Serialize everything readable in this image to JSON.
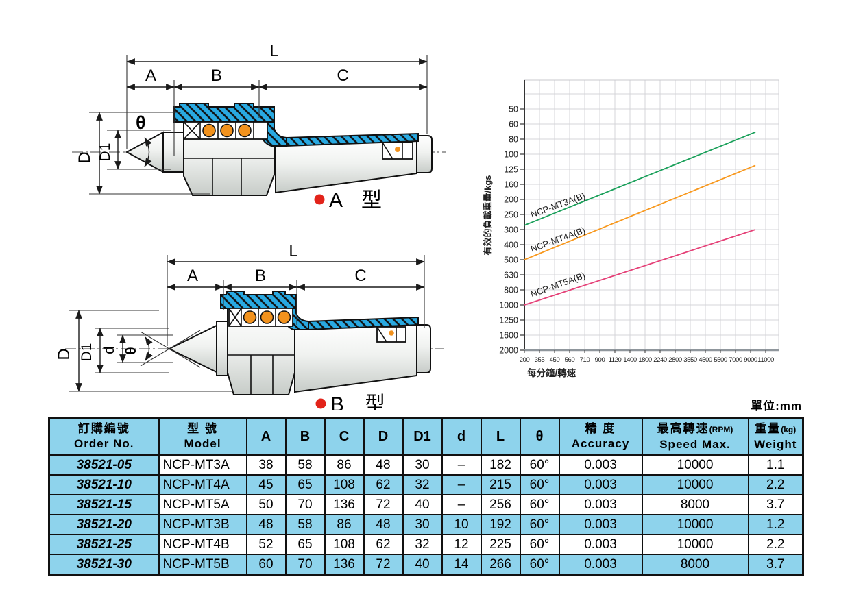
{
  "drawing_a": {
    "label_letter": "A",
    "label_suffix": "型",
    "dims": {
      "L": "L",
      "A": "A",
      "B": "B",
      "C": "C",
      "D": "D",
      "D1": "D1",
      "theta": "θ"
    }
  },
  "drawing_b": {
    "label_letter": "B",
    "label_suffix": "型",
    "dims": {
      "L": "L",
      "A": "A",
      "B": "B",
      "C": "C",
      "D": "D",
      "D1": "D1",
      "d": "d",
      "theta": "θ"
    }
  },
  "chart_data": {
    "type": "line",
    "title": "",
    "xlabel": "每分鐘/轉速",
    "ylabel": "有效的負載重量/kgs",
    "x_scale": "log (R20 preferred-number ticks)",
    "y_scale": "log inverted (values increase downward)",
    "x_ticks": [
      200,
      355,
      450,
      560,
      710,
      900,
      1120,
      1400,
      1800,
      2240,
      2800,
      3550,
      4500,
      5500,
      7000,
      9000,
      11000
    ],
    "y_ticks": [
      50,
      60,
      80,
      100,
      125,
      160,
      200,
      250,
      300,
      400,
      500,
      630,
      800,
      1000,
      1250,
      1600,
      2000
    ],
    "grid": true,
    "legend_position": "inline rotated labels above each line",
    "frame_color": "#f6ba1e",
    "series": [
      {
        "name": "NCP-MT3A(B)",
        "color": "#1aa05a",
        "points": [
          [
            200,
            285
          ],
          [
            9600,
            70
          ]
        ]
      },
      {
        "name": "NCP-MT4A(B)",
        "color": "#f8981d",
        "points": [
          [
            200,
            500
          ],
          [
            9600,
            118
          ]
        ]
      },
      {
        "name": "NCP-MT5A(B)",
        "color": "#e54077",
        "points": [
          [
            200,
            1000
          ],
          [
            9600,
            300
          ]
        ]
      }
    ]
  },
  "table": {
    "unit_label": "單位:mm",
    "headers": [
      {
        "zh": "訂購編號",
        "en": "Order No."
      },
      {
        "zh": "型 號",
        "en": "Model"
      },
      {
        "zh": "A"
      },
      {
        "zh": "B"
      },
      {
        "zh": "C"
      },
      {
        "zh": "D"
      },
      {
        "zh": "D1"
      },
      {
        "zh": "d"
      },
      {
        "zh": "L"
      },
      {
        "zh": "θ"
      },
      {
        "zh": "精 度",
        "en": "Accuracy"
      },
      {
        "zh": "最高轉速",
        "zh_sub": "(RPM)",
        "en": "Speed Max."
      },
      {
        "zh": "重量",
        "zh_sub": "(kg)",
        "en": "Weight"
      }
    ],
    "rows": [
      [
        "38521-05",
        "NCP-MT3A",
        "38",
        "58",
        "86",
        "48",
        "30",
        "–",
        "182",
        "60°",
        "0.003",
        "10000",
        "1.1"
      ],
      [
        "38521-10",
        "NCP-MT4A",
        "45",
        "65",
        "108",
        "62",
        "32",
        "–",
        "215",
        "60°",
        "0.003",
        "10000",
        "2.2"
      ],
      [
        "38521-15",
        "NCP-MT5A",
        "50",
        "70",
        "136",
        "72",
        "40",
        "–",
        "256",
        "60°",
        "0.003",
        "8000",
        "3.7"
      ],
      [
        "38521-20",
        "NCP-MT3B",
        "48",
        "58",
        "86",
        "48",
        "30",
        "10",
        "192",
        "60°",
        "0.003",
        "10000",
        "1.2"
      ],
      [
        "38521-25",
        "NCP-MT4B",
        "52",
        "65",
        "108",
        "62",
        "32",
        "12",
        "225",
        "60°",
        "0.003",
        "10000",
        "2.2"
      ],
      [
        "38521-30",
        "NCP-MT5B",
        "60",
        "70",
        "136",
        "72",
        "40",
        "14",
        "266",
        "60°",
        "0.003",
        "8000",
        "3.7"
      ]
    ]
  }
}
